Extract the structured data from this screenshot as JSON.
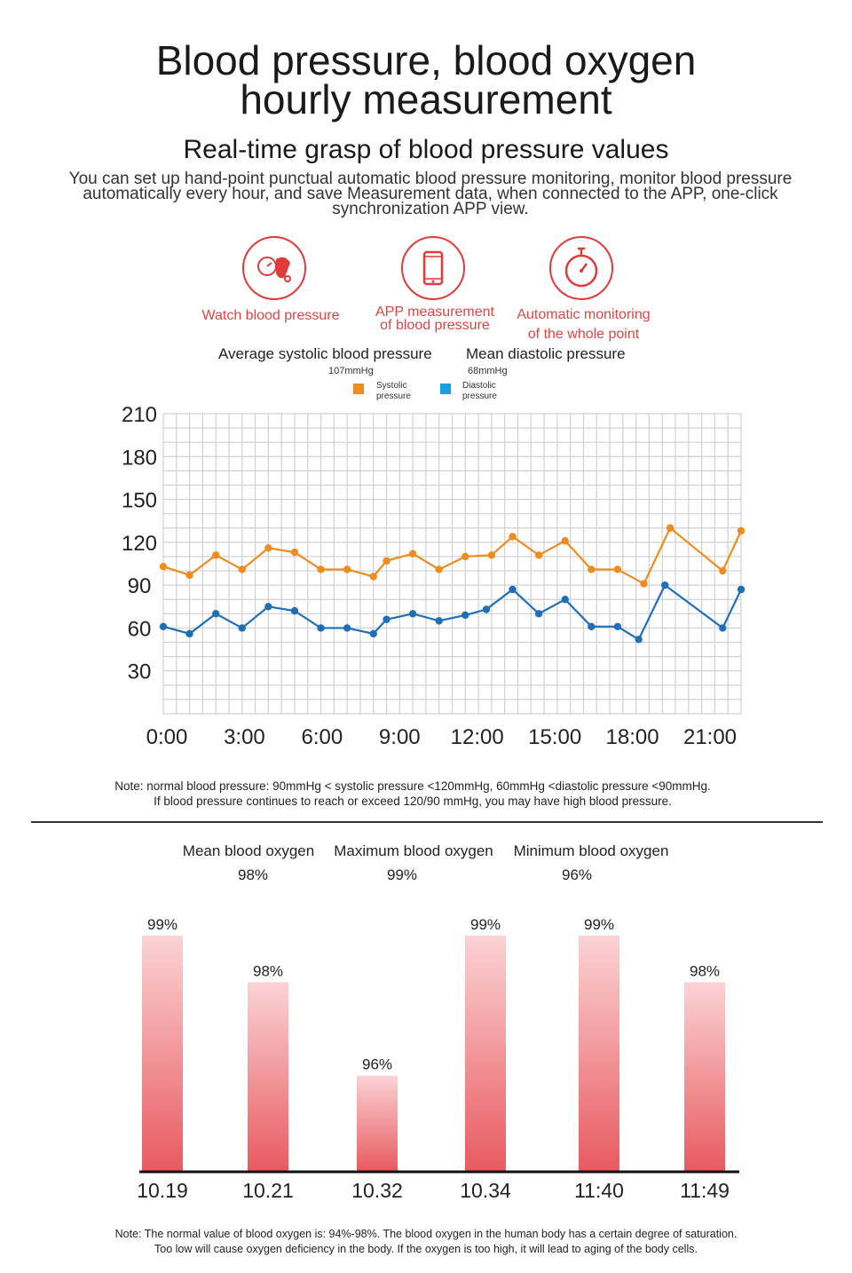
{
  "header": {
    "title_line1": "Blood pressure, blood oxygen",
    "title_line2": "hourly measurement",
    "subtitle": "Real-time grasp of blood pressure values",
    "description": "You can set up hand-point punctual automatic blood pressure monitoring, monitor blood pressure automatically every hour, and save Measurement data, when connected to the APP, one-click synchronization APP view."
  },
  "features": [
    {
      "icon": "blood-pressure-cuff-icon",
      "line1": "Watch blood pressure",
      "line2": ""
    },
    {
      "icon": "smartphone-icon",
      "line1": "APP measurement",
      "line2": "of blood pressure"
    },
    {
      "icon": "stopwatch-icon",
      "line1": "Automatic monitoring",
      "line2": "of the whole point"
    }
  ],
  "bp_stats": {
    "systolic_label": "Average systolic blood pressure",
    "systolic_value": "107mmHg",
    "diastolic_label": "Mean diastolic pressure",
    "diastolic_value": "68mmHg"
  },
  "colors": {
    "systolic": "#ee8c1f",
    "diastolic": "#1f6fb8",
    "grid": "#d0d0d0",
    "bar_top": "#fbd3d5",
    "bar_bottom": "#e85a60",
    "accent": "#e03a3a"
  },
  "chart_data": [
    {
      "type": "line",
      "legend": [
        {
          "name_line1": "Systolic",
          "name_line2": "pressure"
        },
        {
          "name_line1": "Diastolic",
          "name_line2": "pressure"
        }
      ],
      "x_tick_labels": [
        "0:00",
        "3:00",
        "6:00",
        "9:00",
        "12:00",
        "15:00",
        "18:00",
        "21:00"
      ],
      "y_tick_labels": [
        "210",
        "180",
        "150",
        "120",
        "90",
        "60",
        "30"
      ],
      "y_ticks": [
        210,
        180,
        150,
        120,
        90,
        60,
        30
      ],
      "ylim": [
        0,
        210
      ],
      "xlim": [
        0,
        22
      ],
      "grid": true,
      "series": [
        {
          "name": "Systolic pressure",
          "x": [
            0,
            1,
            2,
            3,
            4,
            5,
            6,
            7,
            8,
            8.5,
            9.5,
            10.5,
            11.5,
            12.5,
            13.3,
            14.3,
            15.3,
            16.3,
            17.3,
            18.3,
            19.3,
            21.3,
            22
          ],
          "y": [
            103,
            97,
            111,
            101,
            116,
            113,
            101,
            101,
            96,
            107,
            112,
            101,
            110,
            111,
            124,
            111,
            121,
            101,
            101,
            91,
            130,
            100,
            128
          ]
        },
        {
          "name": "Diastolic pressure",
          "x": [
            0,
            1,
            2,
            3,
            4,
            5,
            6,
            7,
            8,
            8.5,
            9.5,
            10.5,
            11.5,
            12.3,
            13.3,
            14.3,
            15.3,
            16.3,
            17.3,
            18.1,
            19.1,
            21.3,
            22
          ],
          "y": [
            61,
            56,
            70,
            60,
            75,
            72,
            60,
            60,
            56,
            66,
            70,
            65,
            69,
            73,
            87,
            70,
            80,
            61,
            61,
            52,
            90,
            60,
            87
          ]
        }
      ]
    },
    {
      "type": "bar",
      "categories": [
        "10.19",
        "10.21",
        "10.32",
        "10.34",
        "11:40",
        "11:49"
      ],
      "values": [
        99,
        98,
        96,
        99,
        99,
        98
      ],
      "value_labels": [
        "99%",
        "98%",
        "96%",
        "99%",
        "99%",
        "98%"
      ],
      "ylim": [
        93,
        100
      ]
    }
  ],
  "bp_note": {
    "line1": "Note: normal blood pressure: 90mmHg < systolic pressure <120mmHg, 60mmHg <diastolic pressure <90mmHg.",
    "line2": "If blood pressure continues to reach or exceed 120/90 mmHg, you may have high blood pressure."
  },
  "oxygen_stats": [
    {
      "label": "Mean blood oxygen",
      "value": "98%"
    },
    {
      "label": "Maximum blood oxygen",
      "value": "99%"
    },
    {
      "label": "Minimum blood oxygen",
      "value": "96%"
    }
  ],
  "oxygen_note": {
    "line1": "Note: The normal value of blood oxygen is: 94%-98%. The blood oxygen in the human body has a certain degree of  saturation.",
    "line2": "Too low will cause oxygen deficiency in the body. If the oxygen is too high, it will lead to aging of the body cells."
  }
}
